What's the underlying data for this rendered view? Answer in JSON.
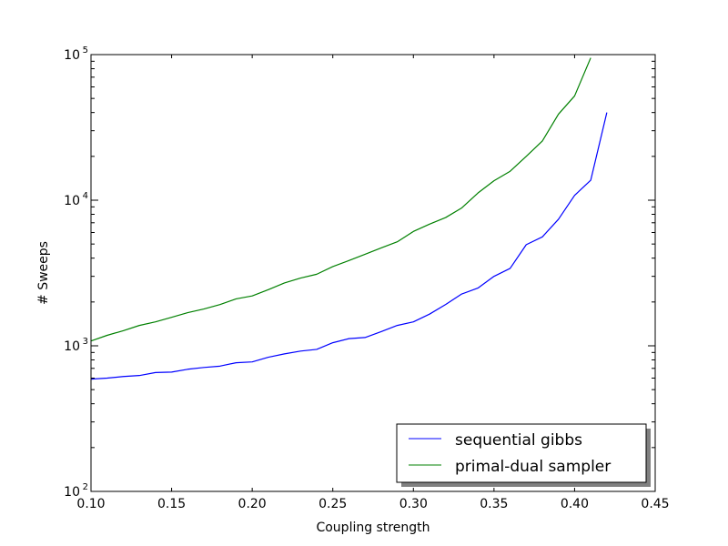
{
  "chart_data": {
    "type": "line",
    "title": "",
    "xlabel": "Coupling strength",
    "ylabel": "# Sweeps",
    "xlim": [
      0.1,
      0.45
    ],
    "ylim": [
      100,
      100000
    ],
    "yscale": "log",
    "grid": false,
    "legend_position": "lower-right",
    "x_ticks": [
      "0.10",
      "0.15",
      "0.20",
      "0.25",
      "0.30",
      "0.35",
      "0.40",
      "0.45"
    ],
    "y_ticks": [
      {
        "base": "10",
        "exp": "2",
        "value": 100
      },
      {
        "base": "10",
        "exp": "3",
        "value": 1000
      },
      {
        "base": "10",
        "exp": "4",
        "value": 10000
      },
      {
        "base": "10",
        "exp": "5",
        "value": 100000
      }
    ],
    "series": [
      {
        "name": "sequential gibbs",
        "color": "#0000ff",
        "x": [
          0.1,
          0.11,
          0.12,
          0.13,
          0.14,
          0.15,
          0.16,
          0.17,
          0.18,
          0.19,
          0.2,
          0.21,
          0.22,
          0.23,
          0.24,
          0.25,
          0.26,
          0.27,
          0.28,
          0.29,
          0.3,
          0.31,
          0.32,
          0.33,
          0.34,
          0.35,
          0.36,
          0.37,
          0.38,
          0.39,
          0.4,
          0.41,
          0.42
        ],
        "y": [
          590,
          600,
          615,
          625,
          655,
          660,
          690,
          710,
          725,
          765,
          775,
          835,
          880,
          920,
          945,
          1050,
          1120,
          1140,
          1250,
          1380,
          1460,
          1650,
          1920,
          2270,
          2490,
          3000,
          3400,
          4950,
          5600,
          7400,
          10800,
          13700,
          40000
        ]
      },
      {
        "name": "primal-dual sampler",
        "color": "#008000",
        "x": [
          0.1,
          0.11,
          0.12,
          0.13,
          0.14,
          0.15,
          0.16,
          0.17,
          0.18,
          0.19,
          0.2,
          0.21,
          0.22,
          0.23,
          0.24,
          0.25,
          0.26,
          0.27,
          0.28,
          0.29,
          0.3,
          0.31,
          0.32,
          0.33,
          0.34,
          0.35,
          0.36,
          0.37,
          0.38,
          0.39,
          0.4,
          0.41
        ],
        "y": [
          1080,
          1180,
          1270,
          1380,
          1460,
          1570,
          1690,
          1790,
          1920,
          2100,
          2200,
          2430,
          2700,
          2920,
          3100,
          3500,
          3850,
          4250,
          4700,
          5180,
          6100,
          6850,
          7600,
          8850,
          11200,
          13600,
          15800,
          20000,
          25500,
          39000,
          52000,
          95000
        ]
      }
    ]
  }
}
